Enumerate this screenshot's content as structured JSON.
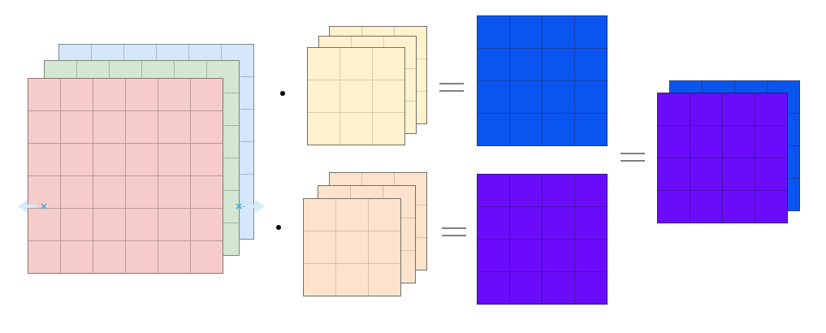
{
  "colors": {
    "input_back": "#d6e6fb",
    "input_mid": "#d4e7d2",
    "input_front": "#f6cccb",
    "kernel_a": "#fff2cc",
    "kernel_b": "#fde3cb",
    "output_a": "#0a55f0",
    "output_b": "#6a0bfa",
    "handle": "#2ab0f0",
    "handle_arrow": "#d2ecfb"
  },
  "input_grid_cells": 6,
  "kernel_grid_cells": 3,
  "output_grid_cells": 4,
  "icons": [
    "dot-product-operator",
    "equals-sign",
    "resize-handle",
    "arrow-left",
    "arrow-right"
  ]
}
